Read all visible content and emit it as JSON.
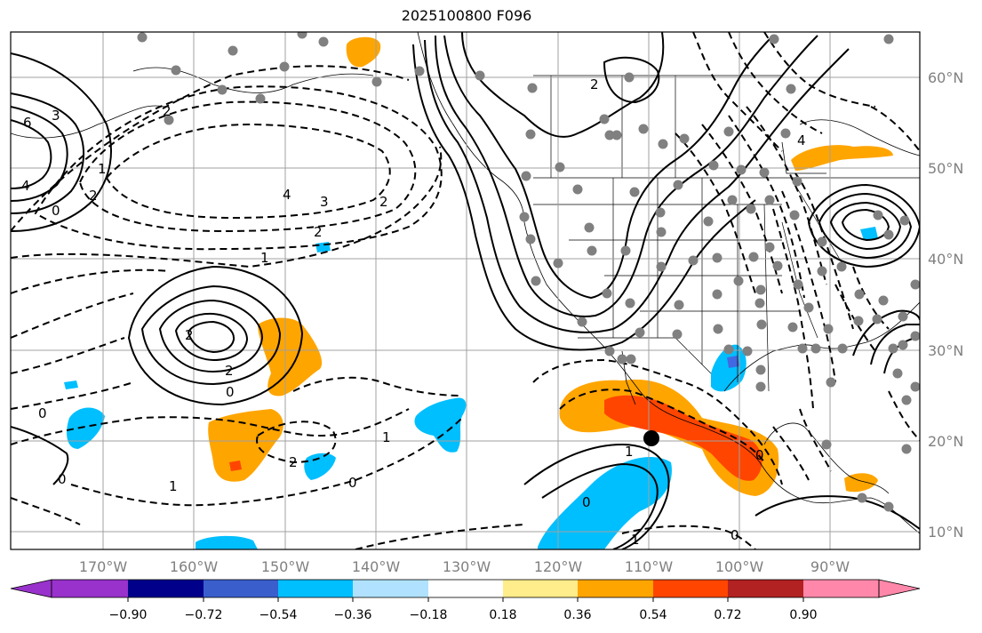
{
  "title": "2025100800 F096",
  "map": {
    "lon_ticks": [
      "170°W",
      "160°W",
      "150°W",
      "140°W",
      "130°W",
      "120°W",
      "110°W",
      "100°W",
      "90°W"
    ],
    "lat_ticks": [
      "60°N",
      "50°N",
      "40°N",
      "30°N",
      "20°N",
      "10°N"
    ],
    "contour_labels": [
      "6",
      "3",
      "4",
      "2",
      "0",
      "1",
      "2",
      "4",
      "3",
      "2",
      "2",
      "1",
      "2",
      "2",
      "0",
      "0",
      "1",
      "2",
      "1",
      "0",
      "0",
      "1",
      "0",
      "1",
      "0",
      "2",
      "4",
      "0"
    ],
    "marker": "current position",
    "colors": {
      "positive_orange": "#ffa500",
      "positive_red": "#ff4500",
      "negative_blue": "#00bfff",
      "negative_medium": "#4169e1"
    }
  },
  "colorbar": {
    "tick_labels": [
      "−0.90",
      "−0.72",
      "−0.54",
      "−0.36",
      "−0.18",
      "0.18",
      "0.36",
      "0.54",
      "0.72",
      "0.90"
    ],
    "colors": [
      "#9932cc",
      "#00008b",
      "#3a5fcd",
      "#00bfff",
      "#b0e2ff",
      "#ffffff",
      "#ffec8b",
      "#ffa500",
      "#ff4500",
      "#b22222",
      "#ff88aa"
    ]
  }
}
